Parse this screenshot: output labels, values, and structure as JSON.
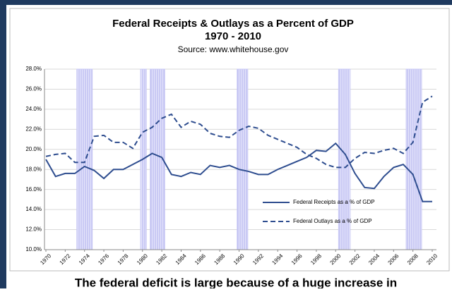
{
  "chart_data": {
    "type": "line",
    "title": "Federal Receipts & Outlays as a Percent of GDP",
    "subtitle": "1970 - 2010",
    "source": "Source: www.whitehouse.gov",
    "x": [
      1970,
      1971,
      1972,
      1973,
      1974,
      1975,
      1976,
      1977,
      1978,
      1979,
      1980,
      1981,
      1982,
      1983,
      1984,
      1985,
      1986,
      1987,
      1988,
      1989,
      1990,
      1991,
      1992,
      1993,
      1994,
      1995,
      1996,
      1997,
      1998,
      1999,
      2000,
      2001,
      2002,
      2003,
      2004,
      2005,
      2006,
      2007,
      2008,
      2009,
      2010
    ],
    "series": [
      {
        "name": "Federal Receipts as a % of GDP",
        "color": "#2e4d8f",
        "dash": "solid",
        "values": [
          19.0,
          17.3,
          17.6,
          17.6,
          18.3,
          17.9,
          17.1,
          18.0,
          18.0,
          18.5,
          19.0,
          19.6,
          19.2,
          17.5,
          17.3,
          17.7,
          17.5,
          18.4,
          18.2,
          18.4,
          18.0,
          17.8,
          17.5,
          17.5,
          18.0,
          18.4,
          18.8,
          19.2,
          19.9,
          19.8,
          20.6,
          19.5,
          17.6,
          16.2,
          16.1,
          17.3,
          18.2,
          18.5,
          17.5,
          14.8,
          14.8
        ]
      },
      {
        "name": "Federal Outlays as a % of GDP",
        "color": "#2e4d8f",
        "dash": "dashed",
        "values": [
          19.3,
          19.5,
          19.6,
          18.7,
          18.7,
          21.3,
          21.4,
          20.7,
          20.7,
          20.1,
          21.7,
          22.2,
          23.1,
          23.5,
          22.2,
          22.8,
          22.5,
          21.6,
          21.3,
          21.2,
          21.9,
          22.3,
          22.1,
          21.4,
          21.0,
          20.6,
          20.2,
          19.5,
          19.1,
          18.5,
          18.2,
          18.2,
          19.1,
          19.7,
          19.6,
          19.9,
          20.1,
          19.6,
          20.7,
          24.7,
          25.3
        ]
      }
    ],
    "shaded_ranges": [
      [
        1973.2,
        1974.8
      ],
      [
        1979.8,
        1980.4
      ],
      [
        1980.8,
        1982.3
      ],
      [
        1989.8,
        1990.9
      ],
      [
        2000.3,
        2001.5
      ],
      [
        2007.3,
        2008.9
      ]
    ],
    "shade_color": "#c8c8f4",
    "xlim": [
      1970,
      2010
    ],
    "xticks": [
      1970,
      1972,
      1974,
      1976,
      1978,
      1980,
      1982,
      1984,
      1986,
      1988,
      1990,
      1992,
      1994,
      1996,
      1998,
      2000,
      2002,
      2004,
      2006,
      2008,
      2010
    ],
    "ylim": [
      10,
      28
    ],
    "yticks": [
      {
        "value": 10,
        "label": "10.0%"
      },
      {
        "value": 12,
        "label": "12.0%"
      },
      {
        "value": 14,
        "label": "14.0%"
      },
      {
        "value": 16,
        "label": "16.0%"
      },
      {
        "value": 18,
        "label": "18.0%"
      },
      {
        "value": 20,
        "label": "20.0%"
      },
      {
        "value": 22,
        "label": "22.0%"
      },
      {
        "value": 24,
        "label": "24.0%"
      },
      {
        "value": 26,
        "label": "26.0%"
      },
      {
        "value": 28,
        "label": "28.0%"
      }
    ],
    "grid": true,
    "legend": "lower right"
  },
  "caption": "The federal deficit is large because of a huge increase in"
}
